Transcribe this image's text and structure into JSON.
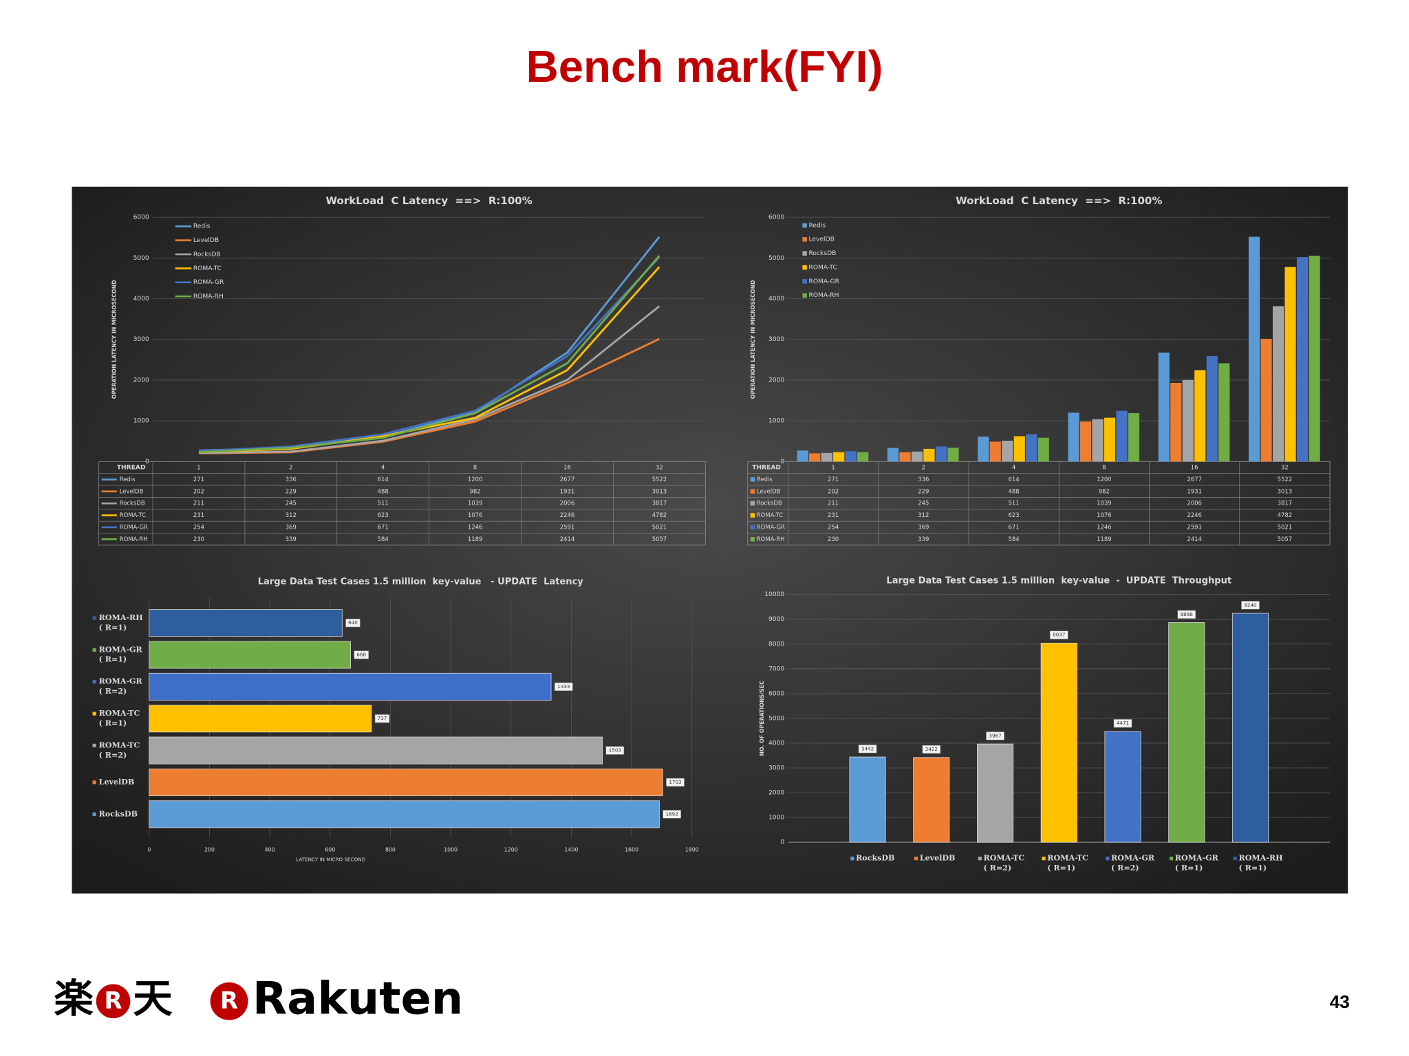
{
  "slide": {
    "title": "Bench mark(FYI)",
    "page": "43",
    "logo_jp": [
      "楽",
      "R",
      "天"
    ],
    "logo_mark": "R",
    "logo_text": "Rakuten"
  },
  "chart_data": [
    {
      "type": "line",
      "title": "WorkLoad  C Latency  ==>  R:100%",
      "y_label": "OPERATION LATENCY IN MICROSECOND",
      "table_header": "THREAD",
      "categories": [
        "1",
        "2",
        "4",
        "8",
        "16",
        "32"
      ],
      "ylim": [
        0,
        6000
      ],
      "yticks": [
        0,
        1000,
        2000,
        3000,
        4000,
        5000,
        6000
      ],
      "grid": true,
      "series": [
        {
          "name": "Redis",
          "color": "#5b9bd5",
          "values": [
            271,
            336,
            614,
            1200,
            2677,
            5522
          ]
        },
        {
          "name": "LevelDB",
          "color": "#ed7d31",
          "values": [
            202,
            229,
            488,
            982,
            1931,
            3013
          ]
        },
        {
          "name": "RocksDB",
          "color": "#a5a5a5",
          "values": [
            211,
            245,
            511,
            1039,
            2006,
            3817
          ]
        },
        {
          "name": "ROMA-TC",
          "color": "#ffc000",
          "values": [
            231,
            312,
            623,
            1076,
            2246,
            4782
          ]
        },
        {
          "name": "ROMA-GR",
          "color": "#4472c4",
          "values": [
            254,
            369,
            671,
            1246,
            2591,
            5021
          ]
        },
        {
          "name": "ROMA-RH",
          "color": "#70ad47",
          "values": [
            230,
            339,
            584,
            1189,
            2414,
            5057
          ]
        }
      ]
    },
    {
      "type": "bar",
      "title": "WorkLoad  C Latency  ==>  R:100%",
      "y_label": "OPERATION LATENCY IN MICROSECOND",
      "table_header": "THREAD",
      "categories": [
        "1",
        "2",
        "4",
        "8",
        "16",
        "32"
      ],
      "ylim": [
        0,
        6000
      ],
      "yticks": [
        0,
        1000,
        2000,
        3000,
        4000,
        5000,
        6000
      ],
      "grid": true,
      "series": [
        {
          "name": "Redis",
          "color": "#5b9bd5",
          "values": [
            271,
            336,
            614,
            1200,
            2677,
            5522
          ]
        },
        {
          "name": "LevelDB",
          "color": "#ed7d31",
          "values": [
            202,
            229,
            488,
            982,
            1931,
            3013
          ]
        },
        {
          "name": "RocksDB",
          "color": "#a5a5a5",
          "values": [
            211,
            245,
            511,
            1039,
            2006,
            3817
          ]
        },
        {
          "name": "ROMA-TC",
          "color": "#ffc000",
          "values": [
            231,
            312,
            623,
            1076,
            2246,
            4782
          ]
        },
        {
          "name": "ROMA-GR",
          "color": "#4472c4",
          "values": [
            254,
            369,
            671,
            1246,
            2591,
            5021
          ]
        },
        {
          "name": "ROMA-RH",
          "color": "#70ad47",
          "values": [
            230,
            339,
            584,
            1189,
            2414,
            5057
          ]
        }
      ]
    },
    {
      "type": "bar",
      "orientation": "horizontal",
      "title": "Large Data Test Cases 1.5 million  key-value   - UPDATE  Latency",
      "x_label": "LATENCY IN MICRO SECOND",
      "categories": [
        "ROMA-RH\n( R=1)",
        "ROMA-GR\n( R=1)",
        "ROMA-GR\n( R=2)",
        "ROMA-TC\n( R=1)",
        "ROMA-TC\n( R=2)",
        "LevelDB",
        "RocksDB"
      ],
      "values": [
        640,
        668,
        1333,
        737,
        1503,
        1703,
        1692
      ],
      "colors": [
        "#2e5e9e",
        "#70ad47",
        "#3d6fc9",
        "#ffc000",
        "#a5a5a5",
        "#ed7d31",
        "#5b9bd5"
      ],
      "xlim": [
        0,
        1800
      ],
      "xticks": [
        0,
        200,
        400,
        600,
        800,
        1000,
        1200,
        1400,
        1600,
        1800
      ],
      "grid": true
    },
    {
      "type": "bar",
      "title": "Large Data Test Cases 1.5 million  key-value  -  UPDATE  Throughput",
      "y_label": "NO. OF OPERATIONS/SEC",
      "categories": [
        "RocksDB",
        "LevelDB",
        "ROMA-TC\n( R=2)",
        "ROMA-TC\n( R=1)",
        "ROMA-GR\n( R=2)",
        "ROMA-GR\n( R=1)",
        "ROMA-RH\n( R=1)"
      ],
      "values": [
        3442,
        3422,
        3967,
        8037,
        4471,
        8866,
        9240
      ],
      "colors": [
        "#5b9bd5",
        "#ed7d31",
        "#a5a5a5",
        "#ffc000",
        "#4472c4",
        "#70ad47",
        "#2e5e9e"
      ],
      "ylim": [
        0,
        10000
      ],
      "yticks": [
        0,
        1000,
        2000,
        3000,
        4000,
        5000,
        6000,
        7000,
        8000,
        9000,
        10000
      ],
      "grid": true
    }
  ]
}
